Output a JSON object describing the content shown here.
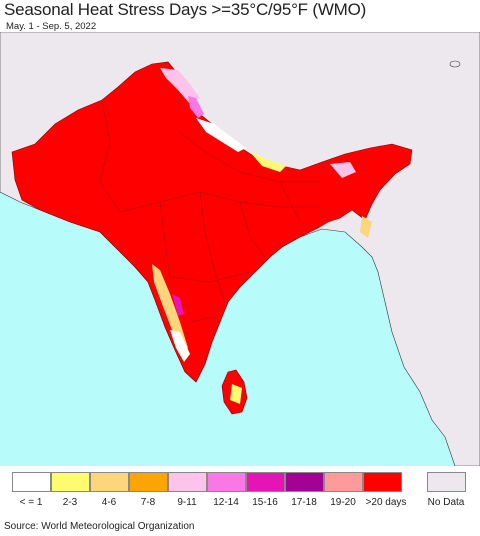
{
  "map": {
    "title": "Seasonal Heat Stress Days >=35°C/95°F (WMO)",
    "date_range": "May. 1 - Sep. 5, 2022",
    "colors": {
      "ocean": "#b7fbfb",
      "no_data_land": "#ede8ee",
      "max_heat": "#ff0000"
    }
  },
  "legend": {
    "items": [
      {
        "label": "< = 1",
        "color": "#ffffff"
      },
      {
        "label": "2-3",
        "color": "#fdfc70"
      },
      {
        "label": "4-6",
        "color": "#fcd57c"
      },
      {
        "label": "7-8",
        "color": "#fba500"
      },
      {
        "label": "9-11",
        "color": "#fdc3ea"
      },
      {
        "label": "12-14",
        "color": "#f978e6"
      },
      {
        "label": "15-16",
        "color": "#e614b5"
      },
      {
        "label": "17-18",
        "color": "#a30392"
      },
      {
        "label": "19-20",
        "color": "#fd9a9a"
      },
      {
        "label": ">20 days",
        "color": "#ff0000"
      }
    ],
    "no_data": {
      "label": "No Data",
      "color": "#ede8ee"
    }
  },
  "source": "Source: World Meteorological Organization"
}
